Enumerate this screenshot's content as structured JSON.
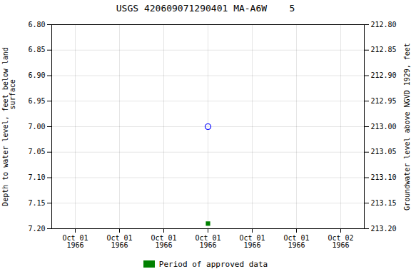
{
  "chart_data": {
    "type": "scatter",
    "title": "USGS 420609071290401 MA-A6W    5",
    "ylabel": "Depth to water level, feet below land\n               surface",
    "y2label": "Groundwater level above NGVD 1929, feet",
    "categories": [
      "Oct 01\n1966",
      "Oct 01\n1966",
      "Oct 01\n1966",
      "Oct 01\n1966",
      "Oct 01\n1966",
      "Oct 01\n1966",
      "Oct 02\n1966"
    ],
    "series": [
      {
        "color": "#0000ff",
        "marker": "circle",
        "values": [
          null,
          null,
          null,
          7.0,
          null,
          null,
          null
        ]
      },
      {
        "name": "Period of approved data",
        "color": "#008000",
        "marker": "square",
        "values": [
          null,
          null,
          null,
          7.19,
          null,
          null,
          null
        ]
      }
    ],
    "ylim": [
      7.2,
      6.8
    ],
    "yticks": [
      {
        "value": 6.8,
        "label": "6.80"
      },
      6.85,
      {
        "value": 6.9,
        "label": "6.90"
      },
      6.95,
      {
        "value": 7.0,
        "label": "7.00"
      },
      7.05,
      {
        "value": 7.1,
        "label": "7.10"
      },
      7.15,
      {
        "value": 7.2,
        "label": "7.20"
      }
    ],
    "y2lim": [
      213.2,
      212.8
    ],
    "y2ticks": [
      {
        "value": 213.2,
        "label": "213.20"
      },
      213.15,
      {
        "value": 213.1,
        "label": "213.10"
      },
      213.05,
      {
        "value": 213.0,
        "label": "213.00"
      },
      212.95,
      {
        "value": 212.9,
        "label": "212.90"
      },
      212.85,
      {
        "value": 212.8,
        "label": "212.80"
      }
    ],
    "grid": true,
    "legend": "bottom"
  }
}
